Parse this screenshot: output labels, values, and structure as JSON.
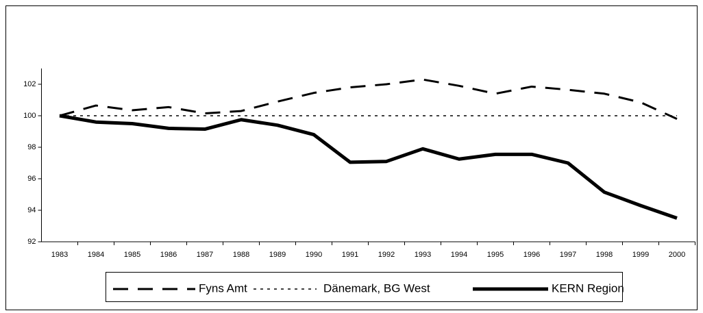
{
  "chart_data": {
    "type": "line",
    "categories": [
      "1983",
      "1984",
      "1985",
      "1986",
      "1987",
      "1988",
      "1989",
      "1990",
      "1991",
      "1992",
      "1993",
      "1994",
      "1995",
      "1996",
      "1997",
      "1998",
      "1999",
      "2000"
    ],
    "series": [
      {
        "name": "Fyns Amt",
        "color": "#000000",
        "style": "dashed",
        "values": [
          100,
          100.65,
          100.35,
          100.55,
          100.15,
          100.3,
          100.9,
          101.45,
          101.8,
          102.0,
          102.3,
          101.9,
          101.4,
          101.85,
          101.65,
          101.4,
          100.85,
          99.8
        ]
      },
      {
        "name": "Dänemark, BG West",
        "color": "#000000",
        "style": "dotted",
        "values": [
          100,
          100,
          100,
          100,
          100,
          100,
          100,
          100,
          100,
          100,
          100,
          100,
          100,
          100,
          100,
          100,
          100,
          100
        ]
      },
      {
        "name": "KERN Region",
        "color": "#000000",
        "style": "solid",
        "values": [
          100,
          99.6,
          99.5,
          99.2,
          99.15,
          99.75,
          99.4,
          98.8,
          97.05,
          97.1,
          97.9,
          97.25,
          97.55,
          97.55,
          97.0,
          95.15,
          94.3,
          93.5
        ]
      }
    ],
    "ylim": [
      92,
      103
    ],
    "yticks": [
      92,
      94,
      96,
      98,
      100,
      102
    ],
    "legend": "bottom"
  }
}
